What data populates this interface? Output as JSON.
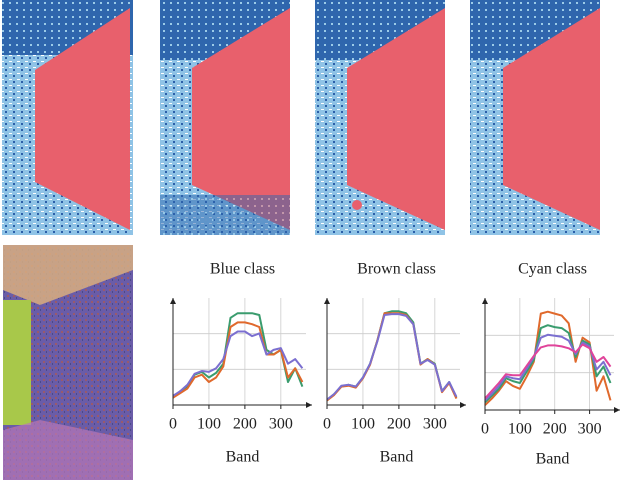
{
  "chart_data": [
    {
      "type": "line",
      "title": "Blue class",
      "xlabel": "Band",
      "x": [
        0,
        20,
        40,
        60,
        80,
        100,
        120,
        140,
        160,
        180,
        200,
        220,
        240,
        260,
        280,
        300,
        320,
        340,
        360
      ],
      "xlim": [
        0,
        370
      ],
      "xticks": [
        0,
        100,
        200,
        300
      ],
      "ylim": [
        0,
        1.1
      ],
      "grid": true,
      "series": [
        {
          "color": "#3a9c6e",
          "values": [
            0.08,
            0.15,
            0.2,
            0.33,
            0.36,
            0.3,
            0.35,
            0.45,
            0.95,
            1.0,
            1.0,
            1.0,
            0.98,
            0.6,
            0.55,
            0.6,
            0.25,
            0.4,
            0.2
          ]
        },
        {
          "color": "#e0692c",
          "values": [
            0.08,
            0.13,
            0.18,
            0.3,
            0.33,
            0.25,
            0.3,
            0.42,
            0.85,
            0.9,
            0.9,
            0.88,
            0.85,
            0.55,
            0.55,
            0.6,
            0.3,
            0.4,
            0.25
          ]
        },
        {
          "color": "#7b6fd0",
          "values": [
            0.1,
            0.15,
            0.22,
            0.34,
            0.37,
            0.36,
            0.4,
            0.5,
            0.75,
            0.8,
            0.8,
            0.75,
            0.78,
            0.55,
            0.6,
            0.62,
            0.45,
            0.5,
            0.4
          ]
        }
      ]
    },
    {
      "type": "line",
      "title": "Brown class",
      "xlabel": "Band",
      "x": [
        0,
        20,
        40,
        60,
        80,
        100,
        120,
        140,
        160,
        180,
        200,
        220,
        240,
        260,
        280,
        300,
        320,
        340,
        360
      ],
      "xlim": [
        0,
        370
      ],
      "xticks": [
        0,
        100,
        200,
        300
      ],
      "ylim": [
        0,
        1.1
      ],
      "grid": true,
      "series": [
        {
          "color": "#3a9c6e",
          "values": [
            0.05,
            0.12,
            0.2,
            0.22,
            0.2,
            0.3,
            0.45,
            0.7,
            1.0,
            1.02,
            1.02,
            1.0,
            0.9,
            0.45,
            0.5,
            0.45,
            0.15,
            0.25,
            0.08
          ]
        },
        {
          "color": "#e0692c",
          "values": [
            0.05,
            0.11,
            0.2,
            0.21,
            0.19,
            0.29,
            0.44,
            0.7,
            1.0,
            1.0,
            1.0,
            0.98,
            0.88,
            0.44,
            0.5,
            0.44,
            0.14,
            0.24,
            0.07
          ]
        },
        {
          "color": "#7b6fd0",
          "values": [
            0.06,
            0.12,
            0.21,
            0.22,
            0.2,
            0.3,
            0.45,
            0.69,
            0.98,
            0.99,
            0.99,
            0.97,
            0.88,
            0.45,
            0.49,
            0.44,
            0.15,
            0.25,
            0.09
          ]
        }
      ]
    },
    {
      "type": "line",
      "title": "Cyan class",
      "xlabel": "Band",
      "x": [
        0,
        20,
        40,
        60,
        80,
        100,
        120,
        140,
        160,
        180,
        200,
        220,
        240,
        260,
        280,
        300,
        320,
        340,
        360
      ],
      "xlim": [
        0,
        370
      ],
      "xticks": [
        0,
        100,
        200,
        300
      ],
      "ylim": [
        0,
        1.1
      ],
      "grid": true,
      "series": [
        {
          "color": "#e0692c",
          "values": [
            0.05,
            0.12,
            0.2,
            0.3,
            0.25,
            0.22,
            0.35,
            0.5,
            1.0,
            1.02,
            1.0,
            0.98,
            0.9,
            0.5,
            0.75,
            0.7,
            0.2,
            0.35,
            0.1
          ]
        },
        {
          "color": "#3a9c6e",
          "values": [
            0.08,
            0.15,
            0.22,
            0.33,
            0.3,
            0.28,
            0.4,
            0.52,
            0.85,
            0.88,
            0.86,
            0.85,
            0.8,
            0.55,
            0.72,
            0.68,
            0.35,
            0.45,
            0.28
          ]
        },
        {
          "color": "#7b6fd0",
          "values": [
            0.1,
            0.17,
            0.25,
            0.35,
            0.33,
            0.32,
            0.43,
            0.55,
            0.75,
            0.78,
            0.77,
            0.76,
            0.72,
            0.58,
            0.7,
            0.66,
            0.42,
            0.5,
            0.36
          ]
        },
        {
          "color": "#e0449a",
          "values": [
            0.12,
            0.2,
            0.28,
            0.37,
            0.36,
            0.36,
            0.46,
            0.56,
            0.65,
            0.67,
            0.67,
            0.66,
            0.64,
            0.6,
            0.68,
            0.64,
            0.5,
            0.55,
            0.45
          ]
        }
      ]
    }
  ]
}
